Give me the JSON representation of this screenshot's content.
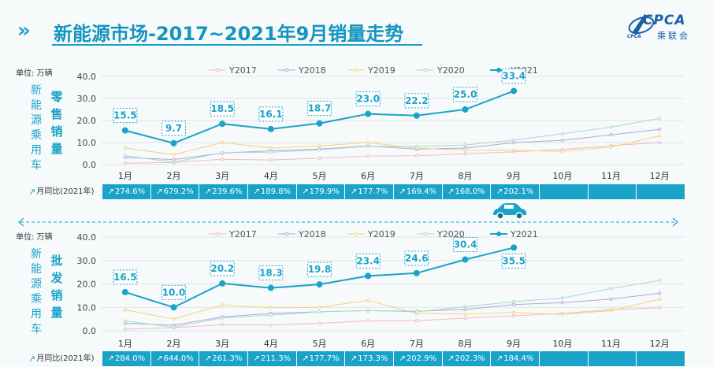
{
  "header": {
    "title": "新能源市场-2017~2021年9月销量走势",
    "chevron": "»",
    "logo_en": "CPCA",
    "logo_cn": "乘联会",
    "logo_sub": "CPCA"
  },
  "side_label": "新能源乘用车",
  "colors": {
    "accent": "#1aa3c8",
    "y2017": "#f4b9c1",
    "y2018": "#b3a6d6",
    "y2019": "#f5d27a",
    "y2020": "#a8dbc9",
    "y2021": "#1aa3c8",
    "grid": "#e3e3e3"
  },
  "yoy_row_label": "月同比(2021年)",
  "chart_data": [
    {
      "type": "line",
      "title": "零售销量",
      "unit_label": "单位: 万辆",
      "categories": [
        "1月",
        "2月",
        "3月",
        "4月",
        "5月",
        "6月",
        "7月",
        "8月",
        "9月",
        "10月",
        "11月",
        "12月"
      ],
      "ylim": [
        0,
        40
      ],
      "yticks": [
        "0.0",
        "10.0",
        "20.0",
        "30.0",
        "40.0"
      ],
      "grid": true,
      "legend_position": "top",
      "series": [
        {
          "name": "Y2017",
          "values": [
            0.6,
            1.0,
            2.4,
            2.1,
            2.9,
            3.9,
            4.0,
            4.9,
            5.8,
            6.9,
            8.6,
            10.0
          ]
        },
        {
          "name": "Y2018",
          "values": [
            3.3,
            2.3,
            5.2,
            6.3,
            7.0,
            8.5,
            7.0,
            7.5,
            10.0,
            11.0,
            13.5,
            16.0
          ]
        },
        {
          "name": "Y2019",
          "values": [
            7.5,
            4.5,
            10.0,
            7.5,
            8.5,
            10.0,
            7.5,
            6.5,
            6.5,
            6.0,
            8.0,
            13.0
          ]
        },
        {
          "name": "Y2020",
          "values": [
            4.0,
            1.1,
            5.4,
            5.6,
            6.7,
            8.3,
            8.2,
            8.9,
            11.1,
            14.0,
            17.0,
            21.0
          ]
        },
        {
          "name": "Y2021",
          "values": [
            15.5,
            9.7,
            18.5,
            16.1,
            18.7,
            23.0,
            22.2,
            25.0,
            33.4,
            null,
            null,
            null
          ]
        }
      ],
      "data_labels": [
        "15.5",
        "9.7",
        "18.5",
        "16.1",
        "18.7",
        "23.0",
        "22.2",
        "25.0",
        "33.4"
      ],
      "yoy": [
        "274.6%",
        "679.2%",
        "239.6%",
        "189.8%",
        "179.9%",
        "177.7%",
        "169.4%",
        "168.0%",
        "202.1%",
        "",
        "",
        ""
      ]
    },
    {
      "type": "line",
      "title": "批发销量",
      "unit_label": "单位: 万辆",
      "categories": [
        "1月",
        "2月",
        "3月",
        "4月",
        "5月",
        "6月",
        "7月",
        "8月",
        "9月",
        "10月",
        "11月",
        "12月"
      ],
      "ylim": [
        0,
        40
      ],
      "yticks": [
        "0.0",
        "10.0",
        "20.0",
        "30.0",
        "40.0"
      ],
      "grid": true,
      "legend_position": "top",
      "series": [
        {
          "name": "Y2017",
          "values": [
            0.7,
            1.3,
            2.6,
            2.5,
            3.2,
            4.3,
            4.3,
            5.4,
            6.4,
            7.4,
            9.0,
            9.8
          ]
        },
        {
          "name": "Y2018",
          "values": [
            3.2,
            2.4,
            5.9,
            7.4,
            8.1,
            8.6,
            8.3,
            9.1,
            11.2,
            12.0,
            13.5,
            16.0
          ]
        },
        {
          "name": "Y2019",
          "values": [
            8.9,
            5.0,
            11.0,
            9.8,
            10.0,
            13.0,
            7.4,
            7.1,
            7.8,
            7.0,
            8.6,
            13.5
          ]
        },
        {
          "name": "Y2020",
          "values": [
            4.2,
            1.5,
            5.5,
            6.7,
            8.1,
            8.6,
            8.1,
            10.3,
            12.4,
            14.0,
            18.0,
            21.5
          ]
        },
        {
          "name": "Y2021",
          "values": [
            16.5,
            10.0,
            20.2,
            18.3,
            19.8,
            23.4,
            24.6,
            30.4,
            35.5,
            null,
            null,
            null
          ]
        }
      ],
      "data_labels": [
        "16.5",
        "10.0",
        "20.2",
        "18.3",
        "19.8",
        "23.4",
        "24.6",
        "30.4",
        "35.5"
      ],
      "yoy": [
        "284.0%",
        "644.0%",
        "261.3%",
        "211.3%",
        "177.7%",
        "173.3%",
        "202.9%",
        "202.3%",
        "184.4%",
        "",
        "",
        ""
      ]
    }
  ]
}
